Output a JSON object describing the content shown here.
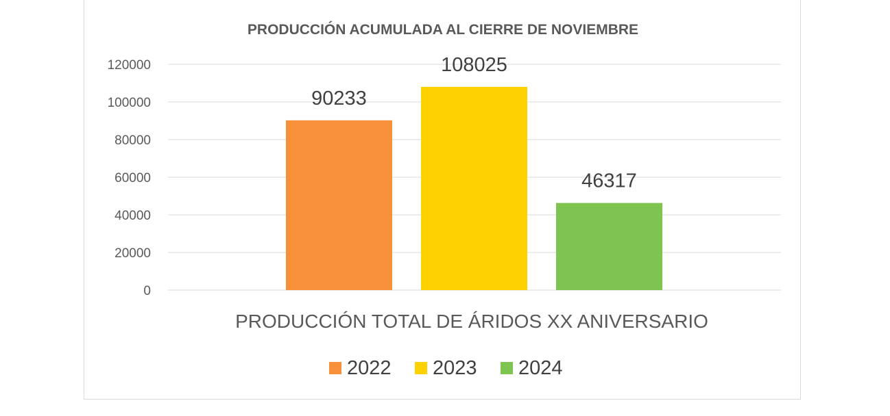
{
  "chart_data": {
    "type": "bar",
    "title": "PRODUCCIÓN ACUMULADA AL CIERRE DE NOVIEMBRE",
    "xlabel": "PRODUCCIÓN TOTAL DE ÁRIDOS XX ANIVERSARIO",
    "ylabel": "",
    "ylim": [
      0,
      120000
    ],
    "yticks": [
      "120000",
      "100000",
      "80000",
      "60000",
      "40000",
      "20000",
      "0"
    ],
    "grid": true,
    "legend_position": "bottom",
    "series": [
      {
        "name": "2022",
        "value": 90233,
        "label": "90233",
        "color": "#f79038"
      },
      {
        "name": "2023",
        "value": 108025,
        "label": "108025",
        "color": "#fed200"
      },
      {
        "name": "2024",
        "value": 46317,
        "label": "46317",
        "color": "#7fc350"
      }
    ]
  }
}
